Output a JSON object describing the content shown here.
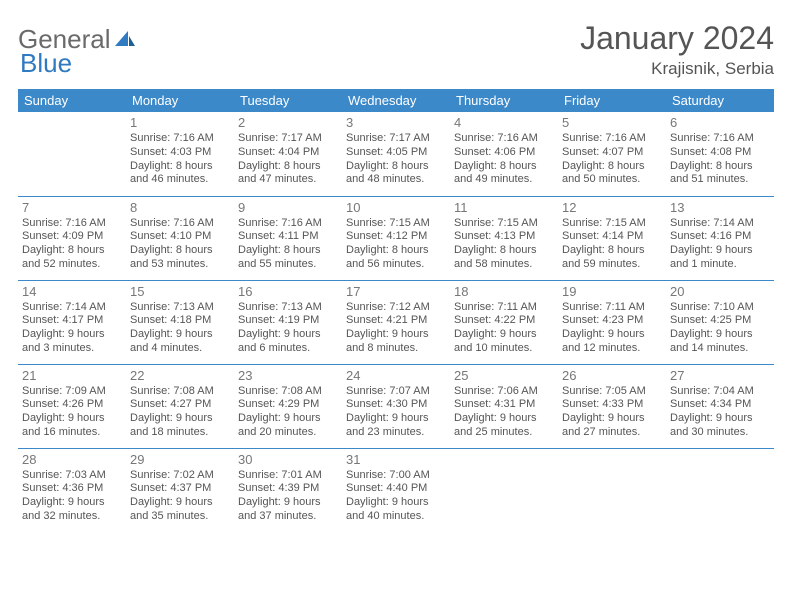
{
  "logo": {
    "part1": "General",
    "part2": "Blue"
  },
  "title": "January 2024",
  "subtitle": "Krajisnik, Serbia",
  "dayHeaders": [
    "Sunday",
    "Monday",
    "Tuesday",
    "Wednesday",
    "Thursday",
    "Friday",
    "Saturday"
  ],
  "colors": {
    "header_bg": "#3b89c9",
    "header_fg": "#ffffff",
    "border": "#3b89c9",
    "text": "#555555",
    "daynum": "#777777",
    "logo_gray": "#6a6a6a",
    "logo_blue": "#2f7ac0",
    "background": "#ffffff"
  },
  "weeks": [
    [
      {
        "n": "",
        "sr": "",
        "ss": "",
        "d1": "",
        "d2": ""
      },
      {
        "n": "1",
        "sr": "Sunrise: 7:16 AM",
        "ss": "Sunset: 4:03 PM",
        "d1": "Daylight: 8 hours",
        "d2": "and 46 minutes."
      },
      {
        "n": "2",
        "sr": "Sunrise: 7:17 AM",
        "ss": "Sunset: 4:04 PM",
        "d1": "Daylight: 8 hours",
        "d2": "and 47 minutes."
      },
      {
        "n": "3",
        "sr": "Sunrise: 7:17 AM",
        "ss": "Sunset: 4:05 PM",
        "d1": "Daylight: 8 hours",
        "d2": "and 48 minutes."
      },
      {
        "n": "4",
        "sr": "Sunrise: 7:16 AM",
        "ss": "Sunset: 4:06 PM",
        "d1": "Daylight: 8 hours",
        "d2": "and 49 minutes."
      },
      {
        "n": "5",
        "sr": "Sunrise: 7:16 AM",
        "ss": "Sunset: 4:07 PM",
        "d1": "Daylight: 8 hours",
        "d2": "and 50 minutes."
      },
      {
        "n": "6",
        "sr": "Sunrise: 7:16 AM",
        "ss": "Sunset: 4:08 PM",
        "d1": "Daylight: 8 hours",
        "d2": "and 51 minutes."
      }
    ],
    [
      {
        "n": "7",
        "sr": "Sunrise: 7:16 AM",
        "ss": "Sunset: 4:09 PM",
        "d1": "Daylight: 8 hours",
        "d2": "and 52 minutes."
      },
      {
        "n": "8",
        "sr": "Sunrise: 7:16 AM",
        "ss": "Sunset: 4:10 PM",
        "d1": "Daylight: 8 hours",
        "d2": "and 53 minutes."
      },
      {
        "n": "9",
        "sr": "Sunrise: 7:16 AM",
        "ss": "Sunset: 4:11 PM",
        "d1": "Daylight: 8 hours",
        "d2": "and 55 minutes."
      },
      {
        "n": "10",
        "sr": "Sunrise: 7:15 AM",
        "ss": "Sunset: 4:12 PM",
        "d1": "Daylight: 8 hours",
        "d2": "and 56 minutes."
      },
      {
        "n": "11",
        "sr": "Sunrise: 7:15 AM",
        "ss": "Sunset: 4:13 PM",
        "d1": "Daylight: 8 hours",
        "d2": "and 58 minutes."
      },
      {
        "n": "12",
        "sr": "Sunrise: 7:15 AM",
        "ss": "Sunset: 4:14 PM",
        "d1": "Daylight: 8 hours",
        "d2": "and 59 minutes."
      },
      {
        "n": "13",
        "sr": "Sunrise: 7:14 AM",
        "ss": "Sunset: 4:16 PM",
        "d1": "Daylight: 9 hours",
        "d2": "and 1 minute."
      }
    ],
    [
      {
        "n": "14",
        "sr": "Sunrise: 7:14 AM",
        "ss": "Sunset: 4:17 PM",
        "d1": "Daylight: 9 hours",
        "d2": "and 3 minutes."
      },
      {
        "n": "15",
        "sr": "Sunrise: 7:13 AM",
        "ss": "Sunset: 4:18 PM",
        "d1": "Daylight: 9 hours",
        "d2": "and 4 minutes."
      },
      {
        "n": "16",
        "sr": "Sunrise: 7:13 AM",
        "ss": "Sunset: 4:19 PM",
        "d1": "Daylight: 9 hours",
        "d2": "and 6 minutes."
      },
      {
        "n": "17",
        "sr": "Sunrise: 7:12 AM",
        "ss": "Sunset: 4:21 PM",
        "d1": "Daylight: 9 hours",
        "d2": "and 8 minutes."
      },
      {
        "n": "18",
        "sr": "Sunrise: 7:11 AM",
        "ss": "Sunset: 4:22 PM",
        "d1": "Daylight: 9 hours",
        "d2": "and 10 minutes."
      },
      {
        "n": "19",
        "sr": "Sunrise: 7:11 AM",
        "ss": "Sunset: 4:23 PM",
        "d1": "Daylight: 9 hours",
        "d2": "and 12 minutes."
      },
      {
        "n": "20",
        "sr": "Sunrise: 7:10 AM",
        "ss": "Sunset: 4:25 PM",
        "d1": "Daylight: 9 hours",
        "d2": "and 14 minutes."
      }
    ],
    [
      {
        "n": "21",
        "sr": "Sunrise: 7:09 AM",
        "ss": "Sunset: 4:26 PM",
        "d1": "Daylight: 9 hours",
        "d2": "and 16 minutes."
      },
      {
        "n": "22",
        "sr": "Sunrise: 7:08 AM",
        "ss": "Sunset: 4:27 PM",
        "d1": "Daylight: 9 hours",
        "d2": "and 18 minutes."
      },
      {
        "n": "23",
        "sr": "Sunrise: 7:08 AM",
        "ss": "Sunset: 4:29 PM",
        "d1": "Daylight: 9 hours",
        "d2": "and 20 minutes."
      },
      {
        "n": "24",
        "sr": "Sunrise: 7:07 AM",
        "ss": "Sunset: 4:30 PM",
        "d1": "Daylight: 9 hours",
        "d2": "and 23 minutes."
      },
      {
        "n": "25",
        "sr": "Sunrise: 7:06 AM",
        "ss": "Sunset: 4:31 PM",
        "d1": "Daylight: 9 hours",
        "d2": "and 25 minutes."
      },
      {
        "n": "26",
        "sr": "Sunrise: 7:05 AM",
        "ss": "Sunset: 4:33 PM",
        "d1": "Daylight: 9 hours",
        "d2": "and 27 minutes."
      },
      {
        "n": "27",
        "sr": "Sunrise: 7:04 AM",
        "ss": "Sunset: 4:34 PM",
        "d1": "Daylight: 9 hours",
        "d2": "and 30 minutes."
      }
    ],
    [
      {
        "n": "28",
        "sr": "Sunrise: 7:03 AM",
        "ss": "Sunset: 4:36 PM",
        "d1": "Daylight: 9 hours",
        "d2": "and 32 minutes."
      },
      {
        "n": "29",
        "sr": "Sunrise: 7:02 AM",
        "ss": "Sunset: 4:37 PM",
        "d1": "Daylight: 9 hours",
        "d2": "and 35 minutes."
      },
      {
        "n": "30",
        "sr": "Sunrise: 7:01 AM",
        "ss": "Sunset: 4:39 PM",
        "d1": "Daylight: 9 hours",
        "d2": "and 37 minutes."
      },
      {
        "n": "31",
        "sr": "Sunrise: 7:00 AM",
        "ss": "Sunset: 4:40 PM",
        "d1": "Daylight: 9 hours",
        "d2": "and 40 minutes."
      },
      {
        "n": "",
        "sr": "",
        "ss": "",
        "d1": "",
        "d2": ""
      },
      {
        "n": "",
        "sr": "",
        "ss": "",
        "d1": "",
        "d2": ""
      },
      {
        "n": "",
        "sr": "",
        "ss": "",
        "d1": "",
        "d2": ""
      }
    ]
  ]
}
